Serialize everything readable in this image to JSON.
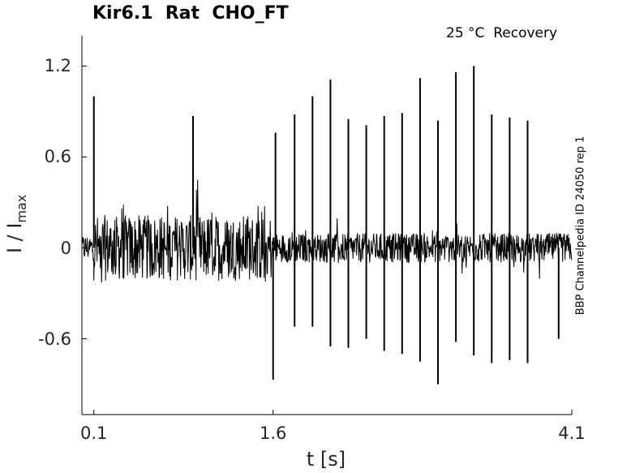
{
  "chart_data": {
    "type": "line",
    "title": "Kir6.1  Rat  CHO_FT",
    "annotation": "25 °C  Recovery",
    "side_label": "BBP Channelpedia ID 24050 rep 1",
    "xlabel": "t [s]",
    "ylabel": {
      "main": "I / I",
      "sub": "max"
    },
    "xlim": [
      0.0,
      4.1
    ],
    "ylim": [
      -1.1,
      1.4
    ],
    "xticks": [
      0.1,
      1.6,
      4.1
    ],
    "xtick_labels": [
      "0.1",
      "1.6",
      "4.1"
    ],
    "yticks": [
      1.2,
      0.6,
      0,
      -0.6
    ],
    "ytick_labels": [
      "1.2",
      "0.6",
      "0",
      "-0.6"
    ],
    "grid": false,
    "line_color": "#000000",
    "series": [
      {
        "noise_segments": [
          {
            "x_start": 0.0,
            "x_end": 0.1,
            "low": -0.12,
            "high": 0.12
          },
          {
            "x_start": 0.1,
            "x_end": 1.6,
            "low": -0.28,
            "high": 0.3
          },
          {
            "x_start": 1.6,
            "x_end": 4.1,
            "low": -0.13,
            "high": 0.13
          }
        ],
        "spikes": [
          {
            "x": 0.1,
            "y": 1.0
          },
          {
            "x": 0.93,
            "y": 0.87
          },
          {
            "x": 1.6,
            "y": -0.87
          },
          {
            "x": 1.62,
            "y": 0.76
          },
          {
            "x": 1.78,
            "y": 0.88
          },
          {
            "x": 1.78,
            "y": -0.52
          },
          {
            "x": 1.93,
            "y": 1.0
          },
          {
            "x": 1.93,
            "y": -0.52
          },
          {
            "x": 2.08,
            "y": 1.11
          },
          {
            "x": 2.08,
            "y": -0.65
          },
          {
            "x": 2.23,
            "y": 0.85
          },
          {
            "x": 2.23,
            "y": -0.66
          },
          {
            "x": 2.38,
            "y": 0.81
          },
          {
            "x": 2.38,
            "y": -0.6
          },
          {
            "x": 2.53,
            "y": 0.87
          },
          {
            "x": 2.53,
            "y": -0.68
          },
          {
            "x": 2.68,
            "y": 0.89
          },
          {
            "x": 2.68,
            "y": -0.7
          },
          {
            "x": 2.83,
            "y": 1.12
          },
          {
            "x": 2.83,
            "y": -0.75
          },
          {
            "x": 2.98,
            "y": 0.84
          },
          {
            "x": 2.98,
            "y": -0.9
          },
          {
            "x": 3.13,
            "y": 1.16
          },
          {
            "x": 3.13,
            "y": -0.62
          },
          {
            "x": 3.28,
            "y": 1.2
          },
          {
            "x": 3.28,
            "y": -0.71
          },
          {
            "x": 3.43,
            "y": 0.88
          },
          {
            "x": 3.43,
            "y": -0.76
          },
          {
            "x": 3.58,
            "y": 0.86
          },
          {
            "x": 3.58,
            "y": -0.74
          },
          {
            "x": 3.73,
            "y": 0.84
          },
          {
            "x": 3.73,
            "y": -0.76
          },
          {
            "x": 3.99,
            "y": 0.0
          },
          {
            "x": 3.99,
            "y": -0.6
          }
        ]
      }
    ]
  }
}
